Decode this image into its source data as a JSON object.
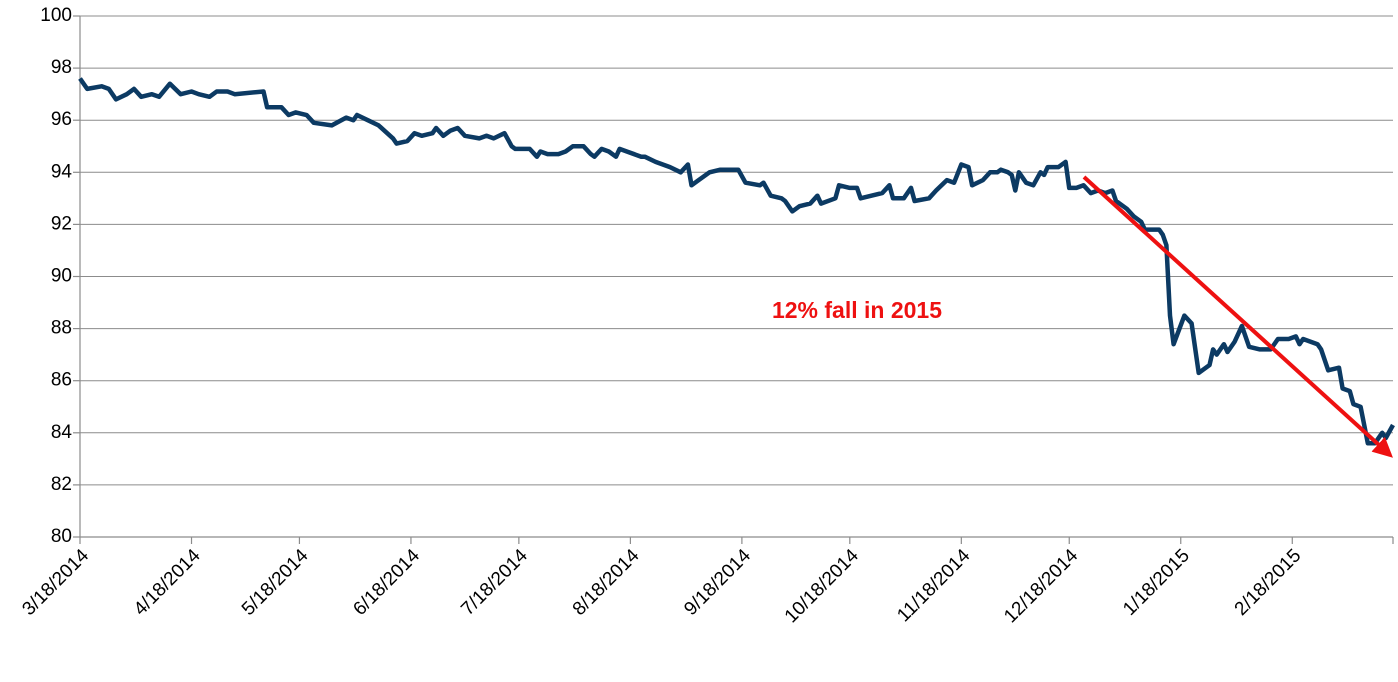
{
  "chart_data": {
    "type": "line",
    "annotation": "12% fall in 2015",
    "color": "#0c3a63",
    "annotation_color": "#ee1111",
    "grid": true,
    "xlim": [
      "3/18/2014",
      "3/18/2015"
    ],
    "xticks": [
      "3/18/2014",
      "4/18/2014",
      "5/18/2014",
      "6/18/2014",
      "7/18/2014",
      "8/18/2014",
      "9/18/2014",
      "10/18/2014",
      "11/18/2014",
      "12/18/2014",
      "1/18/2015",
      "2/18/2015"
    ],
    "ylim": [
      80,
      100
    ],
    "yticks": [
      80,
      82,
      84,
      86,
      88,
      90,
      92,
      94,
      96,
      98,
      100
    ],
    "x": [
      "3/18/2014",
      "3/20/2014",
      "3/24/2014",
      "3/26/2014",
      "3/28/2014",
      "3/31/2014",
      "4/2/2014",
      "4/4/2014",
      "4/7/2014",
      "4/9/2014",
      "4/12/2014",
      "4/15/2014",
      "4/18/2014",
      "4/20/2014",
      "4/23/2014",
      "4/25/2014",
      "4/28/2014",
      "4/30/2014",
      "5/8/2014",
      "5/9/2014",
      "5/13/2014",
      "5/15/2014",
      "5/17/2014",
      "5/20/2014",
      "5/22/2014",
      "5/27/2014",
      "5/31/2014",
      "6/2/2014",
      "6/3/2014",
      "6/6/2014",
      "6/9/2014",
      "6/13/2014",
      "6/14/2014",
      "6/17/2014",
      "6/19/2014",
      "6/21/2014",
      "6/24/2014",
      "6/25/2014",
      "6/27/2014",
      "6/29/2014",
      "7/1/2014",
      "7/3/2014",
      "7/7/2014",
      "7/9/2014",
      "7/11/2014",
      "7/14/2014",
      "7/16/2014",
      "7/17/2014",
      "7/21/2014",
      "7/23/2014",
      "7/24/2014",
      "7/26/2014",
      "7/29/2014",
      "7/31/2014",
      "8/2/2014",
      "8/5/2014",
      "8/7/2014",
      "8/8/2014",
      "8/10/2014",
      "8/12/2014",
      "8/14/2014",
      "8/15/2014",
      "8/17/2014",
      "8/21/2014",
      "8/22/2014",
      "8/25/2014",
      "8/29/2014",
      "9/1/2014",
      "9/3/2014",
      "9/4/2014",
      "9/6/2014",
      "9/9/2014",
      "9/12/2014",
      "9/17/2014",
      "9/19/2014",
      "9/23/2014",
      "9/24/2014",
      "9/26/2014",
      "9/29/2014",
      "9/30/2014",
      "10/2/2014",
      "10/4/2014",
      "10/7/2014",
      "10/9/2014",
      "10/10/2014",
      "10/14/2014",
      "10/15/2014",
      "10/18/2014",
      "10/20/2014",
      "10/21/2014",
      "10/24/2014",
      "10/27/2014",
      "10/29/2014",
      "10/30/2014",
      "11/2/2014",
      "11/4/2014",
      "11/5/2014",
      "11/9/2014",
      "11/11/2014",
      "11/14/2014",
      "11/16/2014",
      "11/18/2014",
      "11/20/2014",
      "11/21/2014",
      "11/24/2014",
      "11/26/2014",
      "11/28/2014",
      "11/29/2014",
      "12/1/2014",
      "12/2/2014",
      "12/3/2014",
      "12/4/2014",
      "12/6/2014",
      "12/8/2014",
      "12/10/2014",
      "12/11/2014",
      "12/12/2014",
      "12/15/2014",
      "12/17/2014",
      "12/18/2014",
      "12/20/2014",
      "12/22/2014",
      "12/24/2014",
      "12/26/2014",
      "12/28/2014",
      "12/30/2014",
      "12/31/2014",
      "1/3/2015",
      "1/5/2015",
      "1/7/2015",
      "1/8/2015",
      "1/12/2015",
      "1/13/2015",
      "1/14/2015",
      "1/15/2015",
      "1/16/2015",
      "1/19/2015",
      "1/21/2015",
      "1/23/2015",
      "1/26/2015",
      "1/27/2015",
      "1/28/2015",
      "1/30/2015",
      "1/31/2015",
      "2/2/2015",
      "2/4/2015",
      "2/6/2015",
      "2/9/2015",
      "2/12/2015",
      "2/14/2015",
      "2/17/2015",
      "2/19/2015",
      "2/20/2015",
      "2/21/2015",
      "2/25/2015",
      "2/26/2015",
      "2/28/2015",
      "3/3/2015",
      "3/4/2015",
      "3/6/2015",
      "3/7/2015",
      "3/9/2015",
      "3/11/2015",
      "3/13/2015",
      "3/15/2015",
      "3/16/2015",
      "3/18/2015"
    ],
    "values": [
      97.6,
      97.2,
      97.3,
      97.2,
      96.8,
      97.0,
      97.2,
      96.9,
      97.0,
      96.9,
      97.4,
      97.0,
      97.1,
      97.0,
      96.9,
      97.1,
      97.1,
      97.0,
      97.1,
      96.5,
      96.5,
      96.2,
      96.3,
      96.2,
      95.9,
      95.8,
      96.1,
      96.0,
      96.2,
      96.0,
      95.8,
      95.3,
      95.1,
      95.2,
      95.5,
      95.4,
      95.5,
      95.7,
      95.4,
      95.6,
      95.7,
      95.4,
      95.3,
      95.4,
      95.3,
      95.5,
      95.0,
      94.9,
      94.9,
      94.6,
      94.8,
      94.7,
      94.7,
      94.8,
      95.0,
      95.0,
      94.7,
      94.6,
      94.9,
      94.8,
      94.6,
      94.9,
      94.8,
      94.6,
      94.6,
      94.4,
      94.2,
      94.0,
      94.3,
      93.5,
      93.7,
      94.0,
      94.1,
      94.1,
      93.6,
      93.5,
      93.6,
      93.1,
      93.0,
      92.9,
      92.5,
      92.7,
      92.8,
      93.1,
      92.8,
      93.0,
      93.5,
      93.4,
      93.4,
      93.0,
      93.1,
      93.2,
      93.5,
      93.0,
      93.0,
      93.4,
      92.9,
      93.0,
      93.3,
      93.7,
      93.6,
      94.3,
      94.2,
      93.5,
      93.7,
      94.0,
      94.0,
      94.1,
      94.0,
      93.9,
      93.3,
      94.0,
      93.6,
      93.5,
      94.0,
      93.9,
      94.2,
      94.2,
      94.4,
      93.4,
      93.4,
      93.5,
      93.2,
      93.3,
      93.2,
      93.3,
      92.9,
      92.6,
      92.3,
      92.1,
      91.8,
      91.8,
      91.6,
      91.2,
      88.5,
      87.4,
      88.5,
      88.2,
      86.3,
      86.6,
      87.2,
      87.0,
      87.4,
      87.1,
      87.5,
      88.1,
      87.3,
      87.2,
      87.2,
      87.6,
      87.6,
      87.7,
      87.4,
      87.6,
      87.4,
      87.2,
      86.4,
      86.5,
      85.7,
      85.6,
      85.1,
      85.0,
      83.6,
      83.6,
      84.0,
      83.8,
      84.3
    ]
  }
}
